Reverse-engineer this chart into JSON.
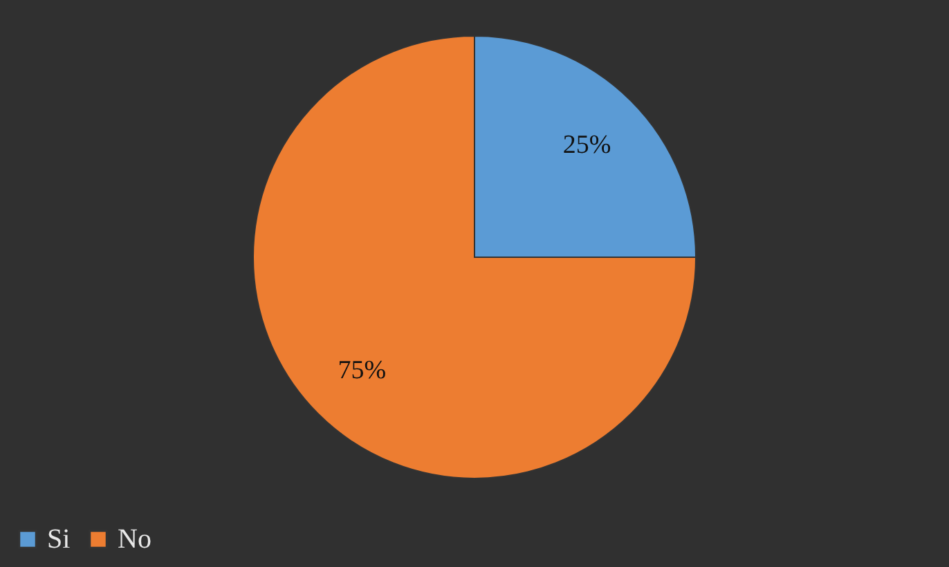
{
  "chart_data": {
    "type": "pie",
    "categories": [
      "Si",
      "No"
    ],
    "values": [
      25,
      75
    ],
    "colors": [
      "#5b9bd5",
      "#ed7d31"
    ],
    "value_labels": [
      "25%",
      "75%"
    ],
    "legend": "bottom"
  }
}
